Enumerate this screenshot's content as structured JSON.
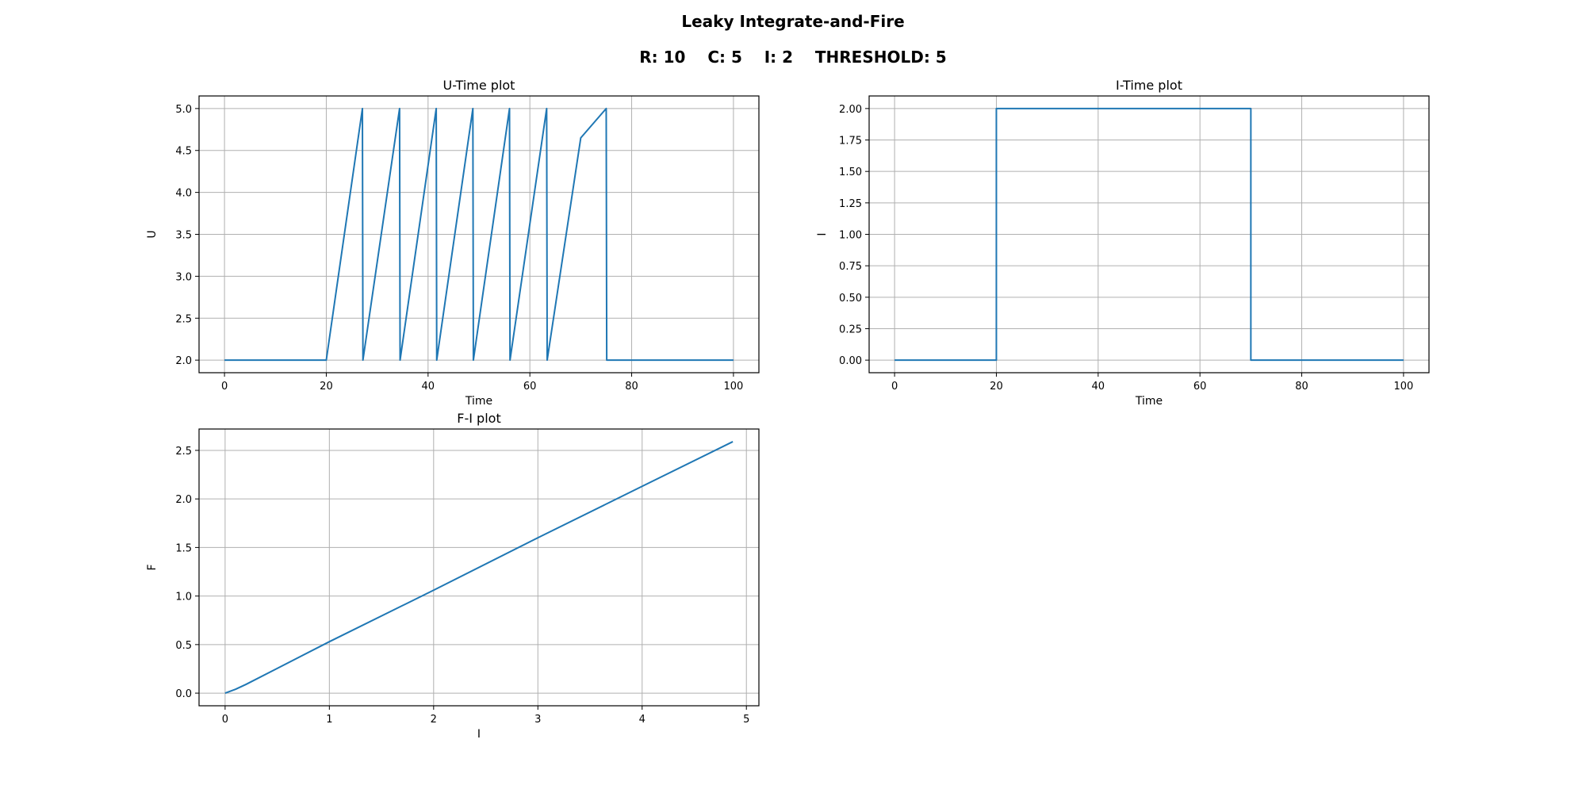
{
  "header": {
    "title": "Leaky Integrate-and-Fire",
    "params_line": "R: 10    C: 5    I: 2    THRESHOLD: 5"
  },
  "colors": {
    "series": "#1f77b4"
  },
  "chart_data": [
    {
      "id": "u-time",
      "type": "line",
      "title": "U-Time plot",
      "xlabel": "Time",
      "ylabel": "U",
      "xlim": [
        -5,
        105
      ],
      "ylim": [
        1.85,
        5.15
      ],
      "xticks": [
        0,
        20,
        40,
        60,
        80,
        100
      ],
      "xtick_labels": [
        "0",
        "20",
        "40",
        "60",
        "80",
        "100"
      ],
      "yticks": [
        2.0,
        2.5,
        3.0,
        3.5,
        4.0,
        4.5,
        5.0
      ],
      "ytick_labels": [
        "2.0",
        "2.5",
        "3.0",
        "3.5",
        "4.0",
        "4.5",
        "5.0"
      ],
      "grid": true,
      "series": [
        {
          "x": [
            0,
            20,
            27.1,
            27.2,
            34.4,
            34.5,
            41.6,
            41.7,
            48.8,
            48.9,
            56.0,
            56.1,
            63.3,
            63.4,
            70,
            75,
            75.1,
            100
          ],
          "y": [
            2.0,
            2.0,
            5.0,
            2.0,
            5.0,
            2.0,
            5.0,
            2.0,
            5.0,
            2.0,
            5.0,
            2.0,
            5.0,
            2.0,
            4.65,
            5.0,
            2.0,
            2.0
          ]
        }
      ]
    },
    {
      "id": "i-time",
      "type": "line",
      "title": "I-Time plot",
      "xlabel": "Time",
      "ylabel": "I",
      "xlim": [
        -5,
        105
      ],
      "ylim": [
        -0.1,
        2.1
      ],
      "xticks": [
        0,
        20,
        40,
        60,
        80,
        100
      ],
      "xtick_labels": [
        "0",
        "20",
        "40",
        "60",
        "80",
        "100"
      ],
      "yticks": [
        0,
        0.25,
        0.5,
        0.75,
        1.0,
        1.25,
        1.5,
        1.75,
        2.0
      ],
      "ytick_labels": [
        "0.00",
        "0.25",
        "0.50",
        "0.75",
        "1.00",
        "1.25",
        "1.50",
        "1.75",
        "2.00"
      ],
      "grid": true,
      "series": [
        {
          "x": [
            0,
            20,
            20,
            70,
            70,
            100
          ],
          "y": [
            0,
            0,
            2,
            2,
            0,
            0
          ]
        }
      ]
    },
    {
      "id": "f-i",
      "type": "line",
      "title": "F-I plot",
      "xlabel": "I",
      "ylabel": "F",
      "xlim": [
        -0.25,
        5.12
      ],
      "ylim": [
        -0.13,
        2.72
      ],
      "xticks": [
        0,
        1,
        2,
        3,
        4,
        5
      ],
      "xtick_labels": [
        "0",
        "1",
        "2",
        "3",
        "4",
        "5"
      ],
      "yticks": [
        0.0,
        0.5,
        1.0,
        1.5,
        2.0,
        2.5
      ],
      "ytick_labels": [
        "0.0",
        "0.5",
        "1.0",
        "1.5",
        "2.0",
        "2.5"
      ],
      "grid": true,
      "series": [
        {
          "x": [
            0,
            0.1,
            0.2,
            0.5,
            1.0,
            2.0,
            3.0,
            4.0,
            4.87
          ],
          "y": [
            0,
            0.04,
            0.09,
            0.255,
            0.53,
            1.06,
            1.6,
            2.13,
            2.59
          ]
        }
      ]
    }
  ]
}
